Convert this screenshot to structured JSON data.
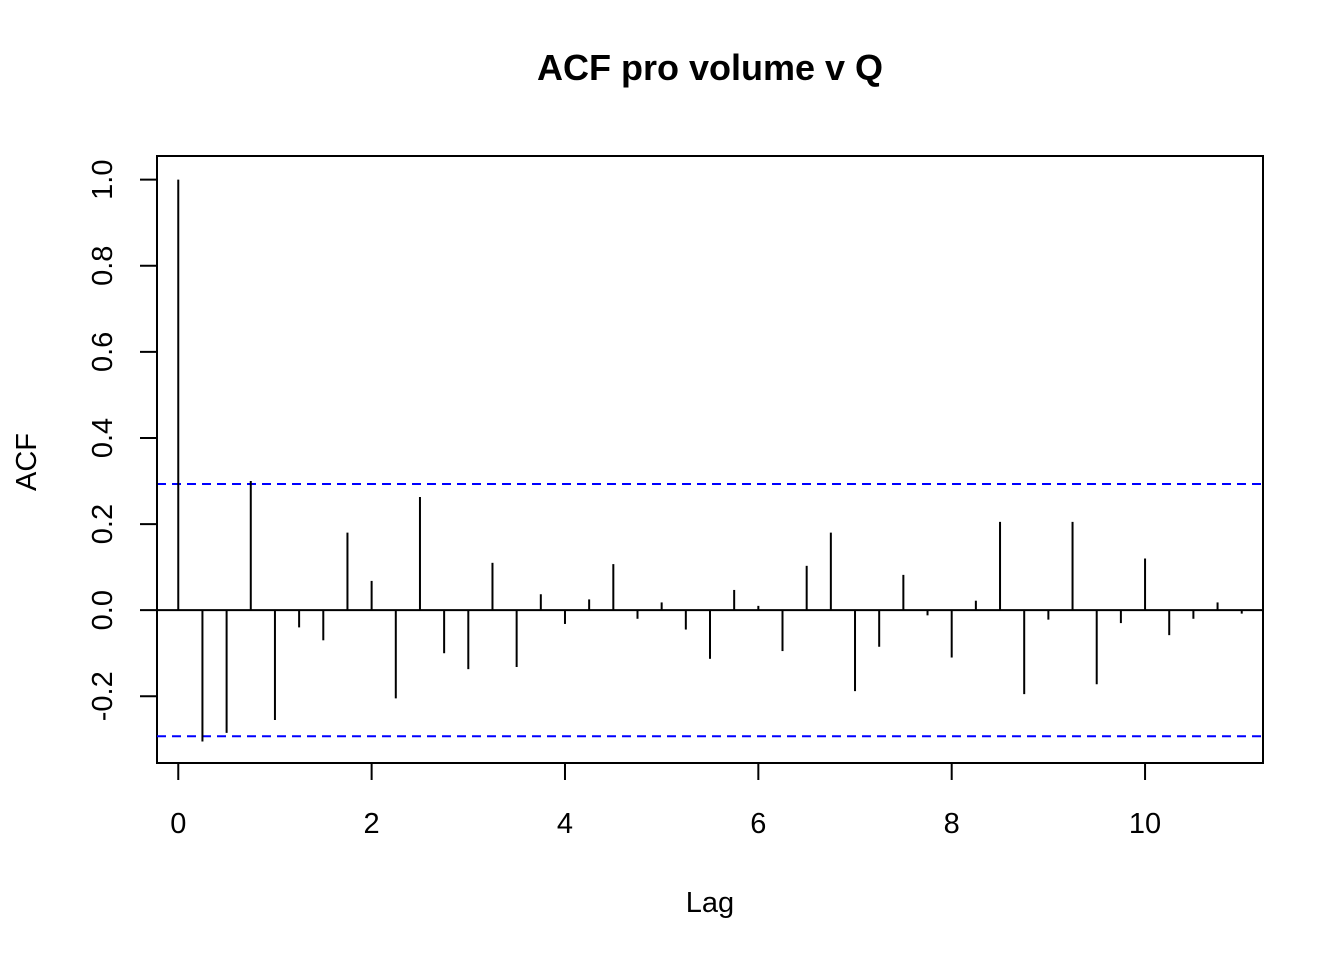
{
  "chart_data": {
    "type": "bar",
    "subtype": "acf-stem",
    "title": "ACF pro volume v Q",
    "xlabel": "Lag",
    "ylabel": "ACF",
    "xlim": [
      -0.22,
      11.22
    ],
    "ylim": [
      -0.355,
      1.055
    ],
    "xticks": [
      0,
      2,
      4,
      6,
      8,
      10
    ],
    "xtick_labels": [
      "0",
      "2",
      "4",
      "6",
      "8",
      "10"
    ],
    "yticks": [
      -0.2,
      0.0,
      0.2,
      0.4,
      0.6,
      0.8,
      1.0
    ],
    "ytick_labels": [
      "-0.2",
      "0.0",
      "0.2",
      "0.4",
      "0.6",
      "0.8",
      "1.0"
    ],
    "grid": false,
    "legend": "none",
    "confidence_bounds": [
      0.293,
      -0.293
    ],
    "confidence_color": "#0000ff",
    "stem_color": "#000000",
    "lags": [
      0,
      0.25,
      0.5,
      0.75,
      1.0,
      1.25,
      1.5,
      1.75,
      2.0,
      2.25,
      2.5,
      2.75,
      3.0,
      3.25,
      3.5,
      3.75,
      4.0,
      4.25,
      4.5,
      4.75,
      5.0,
      5.25,
      5.5,
      5.75,
      6.0,
      6.25,
      6.5,
      6.75,
      7.0,
      7.25,
      7.5,
      7.75,
      8.0,
      8.25,
      8.5,
      8.75,
      9.0,
      9.25,
      9.5,
      9.75,
      10.0,
      10.25,
      10.5,
      10.75,
      11.0
    ],
    "values": [
      1.0,
      -0.305,
      -0.285,
      0.3,
      -0.255,
      -0.04,
      -0.07,
      0.18,
      0.068,
      -0.205,
      0.263,
      -0.1,
      -0.137,
      0.11,
      -0.132,
      0.037,
      -0.032,
      0.025,
      0.107,
      -0.02,
      0.018,
      -0.045,
      -0.113,
      0.047,
      0.01,
      -0.095,
      0.103,
      0.18,
      -0.188,
      -0.085,
      0.082,
      -0.012,
      -0.11,
      0.022,
      0.205,
      -0.195,
      -0.022,
      0.205,
      -0.172,
      -0.03,
      0.12,
      -0.058,
      -0.02,
      0.018,
      -0.008
    ]
  }
}
